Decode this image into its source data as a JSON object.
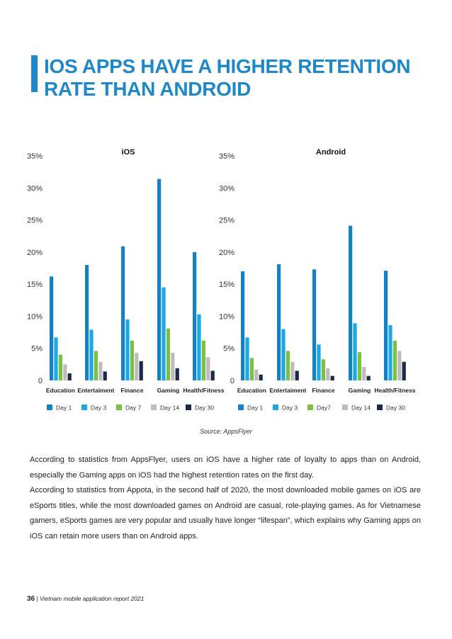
{
  "page": {
    "title": "IOS APPS HAVE A HIGHER RETENTION RATE THAN ANDROID",
    "source": "Source: AppsFlyer",
    "paragraphs": [
      "According to statistics from AppsFlyer, users on iOS have a higher rate of loyalty to apps than on Android, especially the Gaming apps on iOS had the highest retention rates on the first day.",
      "According to statistics from Appota, in the second half of 2020, the most downloaded mobile games on iOS are eSports titles, while the most downloaded games on Android are casual, role-playing games. As for Vietnamese gamers, eSports games are very popular and usually have longer “lifespan”, which explains why Gaming apps on iOS can retain more users than on Android apps."
    ],
    "footer": {
      "page_number": "36",
      "separator": "|",
      "report": "Vietnam mobile application report 2021"
    },
    "accent_color": "#1e88c8"
  },
  "chart_data": [
    {
      "type": "bar",
      "title": "iOS",
      "categories": [
        "Education",
        "Entertaiment",
        "Finance",
        "Gaming",
        "Health/Fitness"
      ],
      "y_ticks": [
        "0",
        "5%",
        "10%",
        "15%",
        "20%",
        "25%",
        "30%",
        "35%"
      ],
      "ylim": [
        0,
        35
      ],
      "series": [
        {
          "name": "Day 1",
          "color": "#1580c4",
          "values": [
            16.2,
            18.0,
            20.9,
            31.4,
            20.0
          ]
        },
        {
          "name": "Day 3",
          "color": "#1aa9e6",
          "values": [
            6.7,
            7.9,
            9.5,
            14.5,
            10.3
          ]
        },
        {
          "name": "Day 7",
          "color": "#7bc043",
          "values": [
            4.0,
            4.6,
            6.2,
            8.1,
            6.2
          ]
        },
        {
          "name": "Day 14",
          "color": "#bdbdbd",
          "values": [
            2.5,
            2.9,
            4.3,
            4.3,
            3.6
          ]
        },
        {
          "name": "Day 30",
          "color": "#1c2a4a",
          "values": [
            1.1,
            1.4,
            3.0,
            1.9,
            1.5
          ]
        }
      ],
      "legend_position": "bottom"
    },
    {
      "type": "bar",
      "title": "Android",
      "categories": [
        "Education",
        "Entertaiment",
        "Finance",
        "Gaming",
        "Health/Fitness"
      ],
      "y_ticks": [
        "0",
        "5%",
        "10%",
        "15%",
        "20%",
        "25%",
        "30%",
        "35%"
      ],
      "ylim": [
        0,
        35
      ],
      "series": [
        {
          "name": "Day 1",
          "color": "#1580c4",
          "values": [
            17.0,
            18.1,
            17.3,
            24.1,
            17.1
          ]
        },
        {
          "name": "Day 3",
          "color": "#1aa9e6",
          "values": [
            6.7,
            8.0,
            5.6,
            8.9,
            8.6
          ]
        },
        {
          "name": "Day7",
          "color": "#7bc043",
          "values": [
            3.5,
            4.6,
            3.3,
            4.4,
            6.2
          ]
        },
        {
          "name": "Day 14",
          "color": "#bdbdbd",
          "values": [
            1.7,
            2.9,
            1.9,
            2.1,
            4.6
          ]
        },
        {
          "name": "Day 30",
          "color": "#1c2a4a",
          "values": [
            0.9,
            1.5,
            0.7,
            0.7,
            2.9
          ]
        }
      ],
      "legend_position": "bottom"
    }
  ]
}
